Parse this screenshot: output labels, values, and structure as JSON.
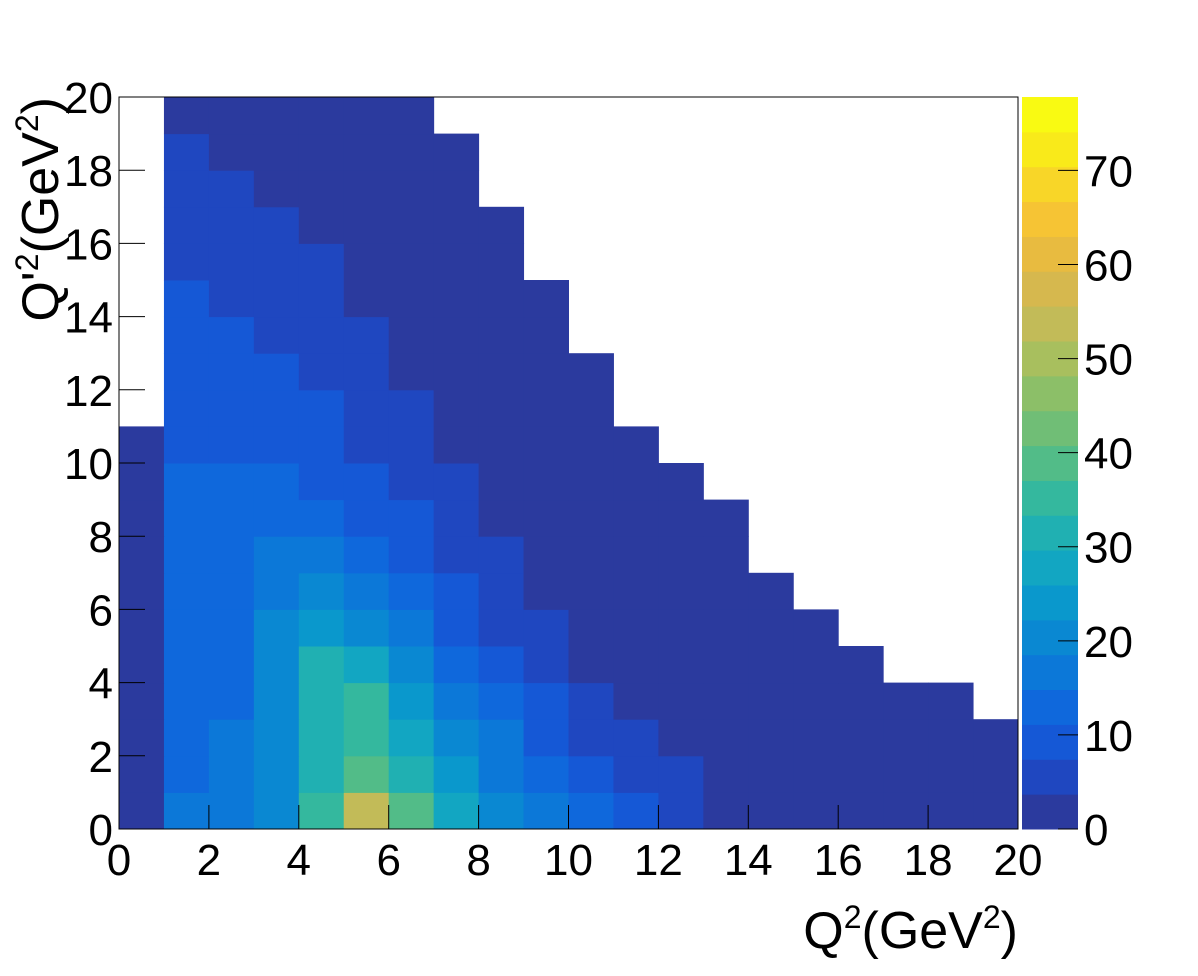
{
  "chart_data": {
    "type": "heatmap",
    "xlabel": [
      "Q",
      "2",
      "(GeV",
      "2",
      ")"
    ],
    "ylabel": [
      "Q'",
      "2",
      "(GeV",
      "2",
      ")"
    ],
    "xbins": [
      0,
      1,
      2,
      3,
      4,
      5,
      6,
      7,
      8,
      9,
      10,
      11,
      12,
      13,
      14,
      15,
      16,
      17,
      18,
      19,
      20
    ],
    "ybins": [
      0,
      1,
      2,
      3,
      4,
      5,
      6,
      7,
      8,
      9,
      10,
      11,
      12,
      13,
      14,
      15,
      16,
      17,
      18,
      19,
      20
    ],
    "xlim": [
      0,
      20
    ],
    "ylim": [
      0,
      20
    ],
    "xticks": [
      0,
      2,
      4,
      6,
      8,
      10,
      12,
      14,
      16,
      18,
      20
    ],
    "yticks": [
      0,
      2,
      4,
      6,
      8,
      10,
      12,
      14,
      16,
      18,
      20
    ],
    "zlim": [
      0,
      77.8
    ],
    "zticks": [
      0,
      10,
      20,
      30,
      40,
      50,
      60,
      70
    ],
    "palette": [
      "#2b3a9e",
      "#1f47c0",
      "#1558d6",
      "#0f68dc",
      "#0c78d8",
      "#0a88d2",
      "#0a98cc",
      "#12a6c2",
      "#20b0b2",
      "#34b89e",
      "#52bc88",
      "#70be76",
      "#8cbf68",
      "#a8bf5e",
      "#c2bb58",
      "#d6b84e",
      "#e8bb40",
      "#f6c434",
      "#f8d628",
      "#f9ea1a",
      "#f9fa12"
    ],
    "z": [
      [
        3,
        15,
        18,
        22,
        35,
        55,
        40,
        28,
        22,
        18,
        12,
        8,
        5,
        3,
        1,
        1,
        1,
        0.5,
        0.5,
        0.3
      ],
      [
        3,
        14,
        16,
        20,
        30,
        40,
        32,
        24,
        18,
        13,
        9,
        6,
        4,
        2,
        1,
        1,
        0.5,
        0.3,
        0.3,
        0.2
      ],
      [
        3,
        13,
        15,
        20,
        30,
        35,
        28,
        20,
        15,
        10,
        7,
        4,
        2,
        1.5,
        1,
        0.5,
        0.3,
        0.3,
        0.2,
        0.1
      ],
      [
        3,
        12,
        14,
        20,
        32,
        35,
        25,
        17,
        12,
        8,
        5,
        3,
        1.5,
        1,
        0.5,
        0.3,
        0.2,
        0.2,
        0.1,
        0
      ],
      [
        3,
        12,
        14,
        22,
        32,
        28,
        20,
        14,
        9,
        6,
        3,
        2,
        1,
        0.6,
        0.3,
        0.2,
        0.1,
        0,
        0,
        0
      ],
      [
        2,
        12,
        14,
        20,
        25,
        22,
        16,
        11,
        7,
        4,
        2,
        1,
        0.6,
        0.3,
        0.2,
        0.1,
        0,
        0,
        0,
        0
      ],
      [
        1,
        12,
        14,
        18,
        20,
        17,
        13,
        9,
        5,
        3,
        1.5,
        0.8,
        0.4,
        0.2,
        0.1,
        0,
        0,
        0,
        0,
        0
      ],
      [
        1,
        12,
        13,
        15,
        16,
        14,
        10,
        7,
        4,
        2,
        1,
        0.5,
        0.2,
        0.1,
        0,
        0,
        0,
        0,
        0,
        0
      ],
      [
        0.5,
        12,
        13,
        13,
        13,
        11,
        8,
        5,
        3,
        1.5,
        0.6,
        0.3,
        0.1,
        0.1,
        0,
        0,
        0,
        0,
        0,
        0
      ],
      [
        0.3,
        12,
        12,
        12,
        11,
        9,
        6,
        4,
        2,
        1,
        0.4,
        0.2,
        0.1,
        0,
        0,
        0,
        0,
        0,
        0,
        0
      ],
      [
        0.2,
        11,
        11,
        10,
        9,
        7,
        5,
        3,
        1.5,
        0.6,
        0.3,
        0.1,
        0,
        0,
        0,
        0,
        0,
        0,
        0,
        0
      ],
      [
        0,
        10,
        10,
        9,
        8,
        6,
        4,
        2,
        1,
        0.4,
        0.2,
        0,
        0,
        0,
        0,
        0,
        0,
        0,
        0,
        0
      ],
      [
        0,
        10,
        9,
        8,
        7,
        5,
        3,
        1.5,
        0.7,
        0.3,
        0.1,
        0,
        0,
        0,
        0,
        0,
        0,
        0,
        0,
        0
      ],
      [
        0,
        9,
        8,
        7,
        6,
        4,
        2,
        1,
        0.5,
        0.2,
        0,
        0,
        0,
        0,
        0,
        0,
        0,
        0,
        0,
        0
      ],
      [
        0,
        8,
        7,
        6,
        5,
        3,
        1.5,
        0.7,
        0.3,
        0.1,
        0,
        0,
        0,
        0,
        0,
        0,
        0,
        0,
        0,
        0
      ],
      [
        0,
        7,
        6,
        5,
        4,
        2,
        1,
        0.5,
        0.2,
        0,
        0,
        0,
        0,
        0,
        0,
        0,
        0,
        0,
        0,
        0
      ],
      [
        0,
        6,
        5,
        4,
        3,
        1.5,
        0.7,
        0.3,
        0.1,
        0,
        0,
        0,
        0,
        0,
        0,
        0,
        0,
        0,
        0,
        0
      ],
      [
        0,
        5,
        4,
        3,
        2,
        1,
        0.5,
        0.2,
        0,
        0,
        0,
        0,
        0,
        0,
        0,
        0,
        0,
        0,
        0,
        0
      ],
      [
        0,
        4,
        3,
        2,
        1.5,
        0.7,
        0.3,
        0.1,
        0,
        0,
        0,
        0,
        0,
        0,
        0,
        0,
        0,
        0,
        0,
        0
      ],
      [
        0,
        3,
        2,
        1.5,
        1,
        0.5,
        0.2,
        0,
        0,
        0,
        0,
        0,
        0,
        0,
        0,
        0,
        0,
        0,
        0,
        0
      ]
    ]
  }
}
